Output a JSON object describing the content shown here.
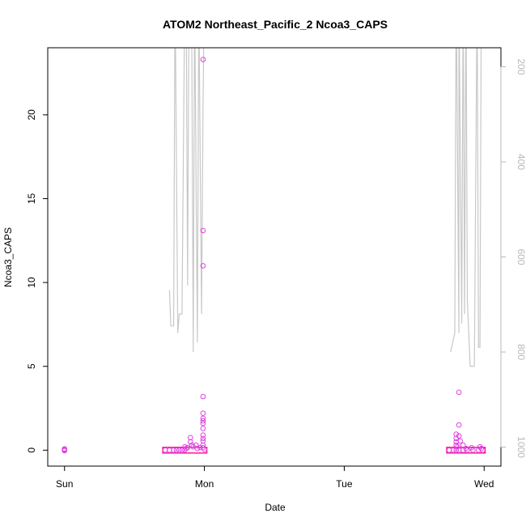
{
  "chart_data": {
    "type": "scatter",
    "title": "ATOM2 Northeast_Pacific_2 Ncoa3_CAPS",
    "xlabel": "Date",
    "ylabel": "Ncoa3_CAPS",
    "x_tick_labels": [
      "Sun",
      "Mon",
      "Tue",
      "Wed"
    ],
    "x_unit": "days since Sunday 00:00",
    "xlim": [
      -0.12,
      3.12
    ],
    "ylim": [
      -0.95,
      24.0
    ],
    "y_ticks": [
      0,
      5,
      10,
      15,
      20
    ],
    "y2_ticks": [
      200,
      400,
      600,
      800,
      1000
    ],
    "y2_lim": [
      1040,
      160
    ],
    "grid": false,
    "legend": "none",
    "colors": {
      "points": "#e040e0",
      "points_dense": "#ff1493",
      "line": "#c8c8c8",
      "secondary_axis": "#b8b8b8"
    },
    "series": [
      {
        "kind": "points",
        "points": [
          [
            0.0,
            0.0
          ],
          [
            0.0,
            0.05
          ],
          [
            0.0,
            -0.03
          ],
          [
            0.0,
            0.08
          ],
          [
            0.72,
            0.0
          ],
          [
            0.75,
            0.0
          ],
          [
            0.78,
            0.0
          ],
          [
            0.8,
            0.0
          ],
          [
            0.82,
            0.0
          ],
          [
            0.84,
            0.0
          ],
          [
            0.86,
            0.02
          ],
          [
            0.86,
            0.2
          ],
          [
            0.87,
            0.1
          ],
          [
            0.88,
            0.15
          ],
          [
            0.9,
            0.75
          ],
          [
            0.9,
            0.5
          ],
          [
            0.91,
            0.3
          ],
          [
            0.92,
            0.2
          ],
          [
            0.94,
            0.3
          ],
          [
            0.95,
            0.1
          ],
          [
            0.97,
            0.15
          ],
          [
            0.99,
            23.3
          ],
          [
            0.99,
            13.1
          ],
          [
            0.99,
            11.0
          ],
          [
            0.99,
            3.2
          ],
          [
            0.99,
            2.2
          ],
          [
            0.99,
            1.9
          ],
          [
            0.99,
            1.75
          ],
          [
            0.99,
            1.6
          ],
          [
            0.99,
            1.3
          ],
          [
            0.99,
            0.9
          ],
          [
            0.99,
            0.7
          ],
          [
            0.99,
            0.55
          ],
          [
            0.99,
            0.3
          ],
          [
            0.99,
            0.15
          ],
          [
            1.0,
            0.05
          ],
          [
            2.75,
            0.0
          ],
          [
            2.78,
            0.0
          ],
          [
            2.8,
            0.0
          ],
          [
            2.82,
            0.0
          ],
          [
            2.85,
            0.0
          ],
          [
            2.88,
            0.0
          ],
          [
            2.92,
            0.0
          ],
          [
            2.96,
            0.0
          ],
          [
            2.99,
            0.0
          ],
          [
            2.8,
            0.95
          ],
          [
            2.8,
            0.7
          ],
          [
            2.8,
            0.5
          ],
          [
            2.8,
            0.3
          ],
          [
            2.81,
            0.2
          ],
          [
            2.82,
            0.85
          ],
          [
            2.83,
            0.55
          ],
          [
            2.82,
            3.45
          ],
          [
            2.82,
            1.5
          ],
          [
            2.85,
            0.3
          ],
          [
            2.87,
            0.1
          ],
          [
            2.91,
            0.15
          ],
          [
            2.97,
            0.2
          ],
          [
            2.98,
            0.1
          ]
        ]
      },
      {
        "kind": "line",
        "axis": "right",
        "segments": [
          [
            [
              0.75,
              670
            ],
            [
              0.76,
              745
            ],
            [
              0.78,
              745
            ],
            [
              0.79,
              30
            ],
            [
              0.81,
              760
            ],
            [
              0.82,
              720
            ],
            [
              0.84,
              720
            ],
            [
              0.86,
              30
            ],
            [
              0.87,
              60
            ],
            [
              0.88,
              660
            ],
            [
              0.89,
              30
            ],
            [
              0.91,
              150
            ],
            [
              0.92,
              800
            ],
            [
              0.93,
              50
            ],
            [
              0.95,
              780
            ],
            [
              0.96,
              60
            ],
            [
              0.98,
              720
            ],
            [
              0.99,
              280
            ],
            [
              1.0,
              30
            ]
          ],
          [
            [
              2.76,
              800
            ],
            [
              2.79,
              760
            ],
            [
              2.8,
              30
            ],
            [
              2.82,
              760
            ],
            [
              2.82,
              30
            ],
            [
              2.84,
              740
            ],
            [
              2.85,
              30
            ],
            [
              2.86,
              720
            ],
            [
              2.87,
              30
            ],
            [
              2.88,
              690
            ],
            [
              2.9,
              830
            ],
            [
              2.93,
              830
            ],
            [
              2.95,
              30
            ],
            [
              2.96,
              790
            ],
            [
              2.97,
              790
            ],
            [
              2.98,
              30
            ]
          ]
        ]
      }
    ]
  }
}
